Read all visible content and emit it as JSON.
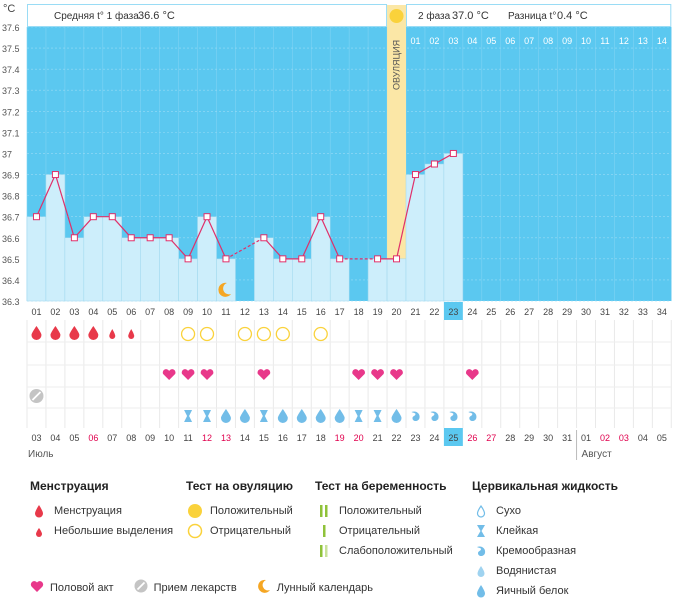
{
  "header": {
    "unit": "°C",
    "phase1_label": "Средняя t° 1 фаза",
    "phase1_value": "36.6 °C",
    "phase2_label": "2 фаза",
    "phase2_value": "37.0 °C",
    "diff_label": "Разница t°",
    "diff_value": "0.4 °C",
    "ovulation_label": "ОВУЛЯЦИЯ"
  },
  "chart_data": {
    "type": "line",
    "ylim": [
      36.3,
      37.6
    ],
    "yticks": [
      "37.6",
      "37.5",
      "37.4",
      "37.3",
      "37.2",
      "37.1",
      "37",
      "36.9",
      "36.8",
      "36.7",
      "36.6",
      "36.5",
      "36.4",
      "36.3"
    ],
    "cycle_days": [
      "01",
      "02",
      "03",
      "04",
      "05",
      "06",
      "07",
      "08",
      "09",
      "10",
      "11",
      "12",
      "13",
      "14",
      "15",
      "16",
      "17",
      "18",
      "19",
      "20",
      "21",
      "22",
      "23",
      "24",
      "25",
      "26",
      "27",
      "28",
      "29",
      "30",
      "31",
      "32",
      "33",
      "34"
    ],
    "cycle_days_top_after_ovulation": [
      "01",
      "02",
      "03",
      "04",
      "05",
      "06",
      "07",
      "08",
      "09",
      "10",
      "11",
      "12",
      "13",
      "14"
    ],
    "temperatures": [
      36.7,
      36.9,
      36.6,
      36.7,
      36.7,
      36.6,
      36.6,
      36.6,
      36.5,
      36.7,
      36.5,
      null,
      36.6,
      36.5,
      36.5,
      36.7,
      36.5,
      null,
      36.5,
      36.5,
      36.9,
      36.95,
      37.0
    ],
    "ovulation_day": 20,
    "highlight_day": 23,
    "calendar_dates": [
      "03",
      "04",
      "05",
      "06",
      "07",
      "08",
      "09",
      "10",
      "11",
      "12",
      "13",
      "14",
      "15",
      "16",
      "17",
      "18",
      "19",
      "20",
      "21",
      "22",
      "23",
      "24",
      "25",
      "26",
      "27",
      "28",
      "29",
      "30",
      "31",
      "01",
      "02",
      "03",
      "04",
      "05"
    ],
    "weekend_dates_idx": [
      3,
      9,
      10,
      16,
      17,
      23,
      24,
      30,
      31
    ],
    "month1": "Июль",
    "month2": "Август",
    "menstruation": [
      "big",
      "big",
      "big",
      "big",
      "small",
      "small"
    ],
    "ovulation_tests": {
      "8": "neg",
      "9": "neg",
      "11": "neg",
      "12": "neg",
      "13": "neg",
      "15": "neg"
    },
    "intercourse_days": [
      7,
      8,
      9,
      12,
      17,
      18,
      19,
      23
    ],
    "medicine_days": [
      0
    ],
    "moon_day": 11,
    "cervical": {
      "8": "sticky",
      "9": "sticky",
      "10": "egg",
      "11": "egg",
      "12": "sticky",
      "13": "egg",
      "14": "egg",
      "15": "egg",
      "16": "egg",
      "17": "sticky",
      "18": "sticky",
      "19": "egg",
      "20": "creamy",
      "21": "creamy",
      "22": "creamy",
      "23": "creamy"
    }
  },
  "legend": {
    "menstruation_title": "Менструация",
    "menstruation_items": [
      "Менструация",
      "Небольшие выделения"
    ],
    "ovulation_title": "Тест на овуляцию",
    "ovulation_items": [
      "Положительный",
      "Отрицательный"
    ],
    "pregnancy_title": "Тест на беременность",
    "pregnancy_items": [
      "Положительный",
      "Отрицательный",
      "Слабоположительный"
    ],
    "cervical_title": "Цервикальная жидкость",
    "cervical_items": [
      "Сухо",
      "Клейкая",
      "Кремообразная",
      "Водянистая",
      "Яичный белок"
    ],
    "bottom": [
      "Половой акт",
      "Прием лекарств",
      "Лунный календарь"
    ]
  },
  "colors": {
    "sky": "#5bc8f0",
    "bar": "#cdeefb",
    "bar_border": "#9ed8ee",
    "line": "#e0306a",
    "ovulation": "#fbe7a6",
    "drop_red": "#e8394a",
    "heart": "#e8388a",
    "blue_drop": "#72bde8",
    "weekend": "#e0004d",
    "moon": "#f5a623",
    "sun": "#fad23b",
    "preg_green": "#8fc23a"
  }
}
